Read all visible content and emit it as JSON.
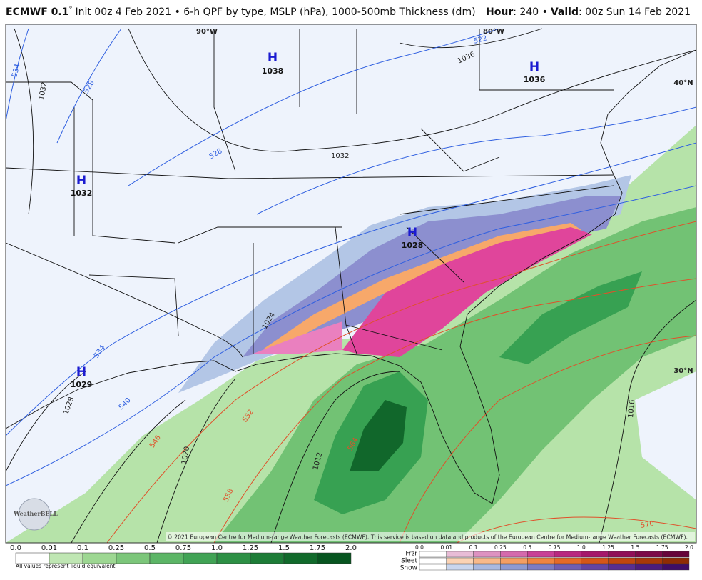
{
  "header": {
    "model": "ECMWF 0.1",
    "degree": "°",
    "description": "Init 00z 4 Feb 2021 • 6-h QPF by type, MSLP (hPa), 1000-500mb Thickness (dm)",
    "hour_label": "Hour",
    "hour_value": ": 240 •",
    "valid_label": "Valid",
    "valid_value": ": 00z Sun 14 Feb 2021"
  },
  "map": {
    "graticule_labels": [
      "90°W",
      "80°W",
      "40°N",
      "30°N"
    ],
    "highs": [
      {
        "symbol": "H",
        "pressure": "1038"
      },
      {
        "symbol": "H",
        "pressure": "1036"
      },
      {
        "symbol": "H",
        "pressure": "1032"
      },
      {
        "symbol": "H",
        "pressure": "1028"
      },
      {
        "symbol": "H",
        "pressure": "1029"
      }
    ],
    "isobar_labels": [
      "1036",
      "1032",
      "1032",
      "1024",
      "1028",
      "1020",
      "1012",
      "1016"
    ],
    "thickness_labels": [
      "534",
      "528",
      "522",
      "528",
      "534",
      "540",
      "546",
      "552",
      "558",
      "564",
      "570"
    ],
    "copyright": "© 2021 European Centre for Medium-range Weather Forecasts (ECMWF). This service is based on data and products of the European Centre for Medium-range Weather Forecasts (ECMWF).",
    "logo": "WeatherBELL"
  },
  "legend": {
    "rain_ticks": [
      "0.0",
      "0.01",
      "0.1",
      "0.25",
      "0.5",
      "0.75",
      "1.0",
      "1.25",
      "1.5",
      "1.75",
      "2.0"
    ],
    "rain_note": "All values represent liquid equivalent",
    "mixed_ticks": [
      "0.0",
      "0.01",
      "0.1",
      "0.25",
      "0.5",
      "0.75",
      "1.0",
      "1.25",
      "1.5",
      "1.75",
      "2.0"
    ],
    "mixed_rows": [
      "Frzr",
      "Sleet",
      "Snow"
    ]
  }
}
